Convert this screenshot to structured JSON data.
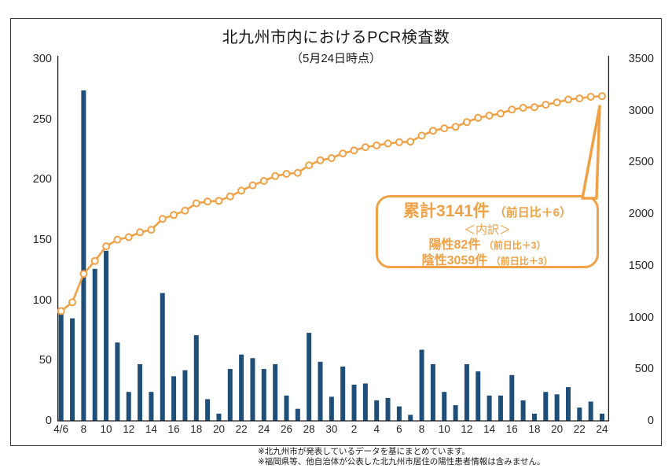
{
  "title": "北九州市内におけるPCR検査数",
  "subtitle": "（5月24日時点）",
  "annotation": {
    "total_label": "累計3141件",
    "total_diff": "（前日比＋6）",
    "breakdown_header": "＜内訳＞",
    "positive_label": "陽性82件",
    "positive_diff": "（前日比＋3）",
    "negative_label": "陰性3059件",
    "negative_diff": "（前日比＋3）"
  },
  "footnotes": {
    "line1": "※北九州市が発表しているデータを基にまとめています。",
    "line2": "※福岡県等、他自治体が公表した北九州市居住の陽性患者情報は含みません。"
  },
  "colors": {
    "bar": "#1F4E79",
    "line": "#F0A145",
    "axis": "#1a1a1a",
    "marker_fill": "#ffffff"
  },
  "chart_data": {
    "type": "bar",
    "note": "combo chart: daily bars (left axis) + cumulative line with open circle markers (right axis)",
    "categories": [
      "4/6",
      "4/7",
      "4/8",
      "4/9",
      "4/10",
      "4/11",
      "4/12",
      "4/13",
      "4/14",
      "4/15",
      "4/16",
      "4/17",
      "4/18",
      "4/19",
      "4/20",
      "4/21",
      "4/22",
      "4/23",
      "4/24",
      "4/25",
      "4/26",
      "4/27",
      "4/28",
      "4/29",
      "4/30",
      "5/1",
      "5/2",
      "5/3",
      "5/4",
      "5/5",
      "5/6",
      "5/7",
      "5/8",
      "5/9",
      "5/10",
      "5/11",
      "5/12",
      "5/13",
      "5/14",
      "5/15",
      "5/16",
      "5/17",
      "5/18",
      "5/19",
      "5/20",
      "5/21",
      "5/22",
      "5/23",
      "5/24"
    ],
    "series": [
      {
        "name": "daily_tests",
        "type": "bar",
        "axis": "left",
        "values": [
          90,
          85,
          274,
          126,
          141,
          65,
          24,
          47,
          24,
          106,
          37,
          42,
          71,
          18,
          6,
          43,
          55,
          52,
          43,
          47,
          21,
          10,
          73,
          49,
          20,
          45,
          30,
          31,
          17,
          19,
          12,
          5,
          59,
          47,
          24,
          13,
          47,
          41,
          21,
          21,
          38,
          17,
          6,
          24,
          22,
          28,
          11,
          16,
          6
        ]
      },
      {
        "name": "cumulative_tests",
        "type": "line",
        "axis": "right",
        "values": [
          1062,
          1147,
          1421,
          1547,
          1688,
          1753,
          1777,
          1824,
          1848,
          1954,
          1991,
          2033,
          2104,
          2122,
          2128,
          2171,
          2226,
          2278,
          2321,
          2368,
          2389,
          2399,
          2472,
          2521,
          2541,
          2586,
          2616,
          2647,
          2664,
          2683,
          2695,
          2700,
          2759,
          2806,
          2830,
          2843,
          2890,
          2931,
          2952,
          2973,
          3011,
          3028,
          3034,
          3058,
          3080,
          3108,
          3119,
          3135,
          3141
        ]
      }
    ],
    "x_tick_labels": [
      "4/6",
      "8",
      "10",
      "12",
      "14",
      "16",
      "18",
      "20",
      "22",
      "24",
      "26",
      "28",
      "30",
      "2",
      "4",
      "6",
      "8",
      "10",
      "12",
      "14",
      "16",
      "18",
      "20",
      "22",
      "24"
    ],
    "x_tick_every": 2,
    "left_axis": {
      "min": 0,
      "max": 300,
      "step": 50
    },
    "right_axis": {
      "min": 0,
      "max": 3500,
      "step": 500
    },
    "title": "北九州市内におけるPCR検査数（5月24日時点）",
    "legend": "none",
    "grid": "off"
  }
}
